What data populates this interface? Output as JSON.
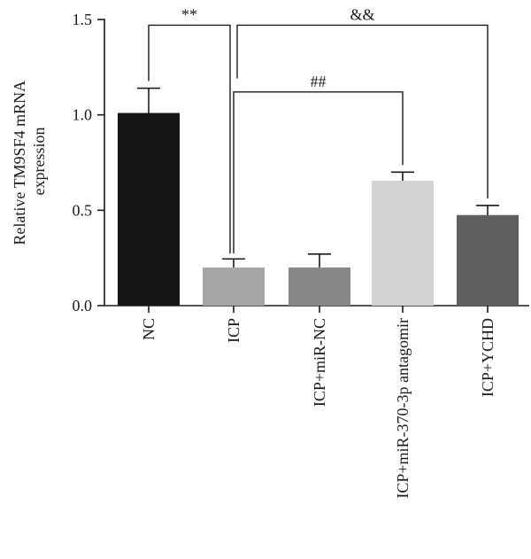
{
  "chart_data": {
    "type": "bar",
    "title": "",
    "xlabel": "",
    "ylabel": "Relative TM9SF4 mRNA expression",
    "ylabel_lines": [
      "Relative TM9SF4 mRNA",
      "expression"
    ],
    "ylim": [
      0,
      1.5
    ],
    "yticks": [
      0.0,
      0.5,
      1.0,
      1.5
    ],
    "ytick_labels": [
      "0.0",
      "0.5",
      "1.0",
      "1.5"
    ],
    "grid": false,
    "categories": [
      "NC",
      "ICP",
      "ICP+miR-NC",
      "ICP+miR-370-3p antagomir",
      "ICP+YCHD"
    ],
    "values": [
      1.01,
      0.2,
      0.2,
      0.655,
      0.475
    ],
    "errors": [
      0.13,
      0.045,
      0.07,
      0.045,
      0.05
    ],
    "bar_colors": [
      "#151515",
      "#a6a6a6",
      "#878787",
      "#d4d4d4",
      "#5f5f5f"
    ],
    "significance": [
      {
        "label": "**",
        "from": 0,
        "to": 1,
        "y": 1.47
      },
      {
        "label": "&&",
        "from": 1,
        "to": 4,
        "y": 1.47
      },
      {
        "label": "##",
        "from": 1,
        "to": 3,
        "y": 1.12
      }
    ]
  }
}
